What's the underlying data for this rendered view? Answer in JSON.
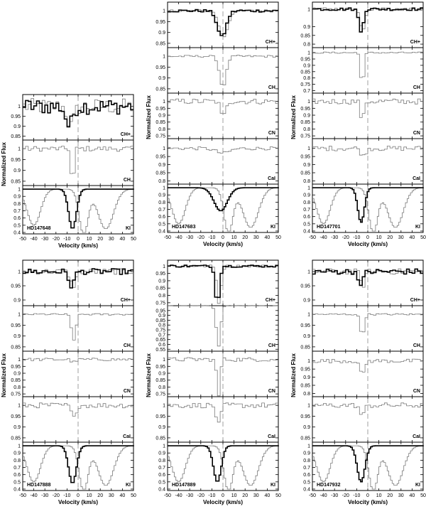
{
  "figure": {
    "xlabel": "Velocity (km/s)",
    "ylabel": "Normalized Flux",
    "xlim": [
      -50,
      50
    ],
    "xticks": [
      -50,
      -40,
      -30,
      -20,
      -10,
      0,
      10,
      20,
      30,
      40,
      50
    ]
  },
  "chart_data": [
    {
      "type": "line",
      "star": "HD147648",
      "panels": [
        {
          "species": "CH+",
          "yticks": [
            "1",
            "0.95",
            "0.9",
            "0.85"
          ],
          "ylim": [
            0.83,
            1.06
          ],
          "dip_center": -8,
          "dip_depth": 0.1,
          "dip_width": 3,
          "noise": 0.04,
          "second_series": true
        },
        {
          "species": "CH",
          "yticks": [
            "1",
            "0.95",
            "0.9",
            "0.85"
          ],
          "ylim": [
            0.83,
            1.04
          ],
          "dip_center": -5,
          "dip_depth": 0.2,
          "dip_width": 1.2,
          "noise": 0.012
        },
        {
          "species": "KI",
          "yticks": [
            "1",
            "0.9",
            "0.8",
            "0.7",
            "0.6",
            "0.5",
            "0.4"
          ],
          "ylim": [
            0.38,
            1.05
          ],
          "dip_center": -5,
          "dip_depth": 0.55,
          "dip_width": 3.5,
          "noise": 0.0,
          "kI": true
        }
      ]
    },
    {
      "type": "line",
      "star": "HD147683",
      "panels": [
        {
          "species": "CH+",
          "yticks": [
            "1",
            "0.95",
            "0.9",
            "0.85"
          ],
          "ylim": [
            0.83,
            1.04
          ],
          "dip_center": -1,
          "dip_depth": 0.12,
          "dip_width": 4,
          "noise": 0.006,
          "second_series": true
        },
        {
          "species": "CH",
          "yticks": [
            "1",
            "0.95",
            "0.9",
            "0.85"
          ],
          "ylim": [
            0.83,
            1.04
          ],
          "dip_center": 0,
          "dip_depth": 0.14,
          "dip_width": 3,
          "noise": 0.005
        },
        {
          "species": "CN",
          "yticks": [
            "1",
            "0.95",
            "0.9",
            "0.85",
            "0.8",
            "0.75"
          ],
          "ylim": [
            0.73,
            1.06
          ],
          "dip_center": 0,
          "dip_depth": 0.12,
          "dip_width": 2,
          "noise": 0.02
        },
        {
          "species": "CaI",
          "yticks": [
            "1",
            "0.95",
            "0.9",
            "0.85",
            "0.8"
          ],
          "ylim": [
            0.78,
            1.06
          ],
          "dip_center": 0,
          "dip_depth": 0.03,
          "dip_width": 6,
          "noise": 0.01
        },
        {
          "species": "KI",
          "yticks": [
            "1",
            "0.9",
            "0.8",
            "0.7",
            "0.6",
            "0.5",
            "0.4"
          ],
          "ylim": [
            0.38,
            1.05
          ],
          "dip_center": -2,
          "dip_depth": 0.32,
          "dip_width": 6,
          "noise": 0.0,
          "kI": true
        }
      ]
    },
    {
      "type": "line",
      "star": "HD147701",
      "panels": [
        {
          "species": "CH+",
          "yticks": [
            "1",
            "0.9",
            "0.85",
            "0.8"
          ],
          "ylim": [
            0.78,
            1.04
          ],
          "dip_center": -6,
          "dip_depth": 0.13,
          "dip_width": 2,
          "noise": 0.008,
          "second_series": true
        },
        {
          "species": "CH",
          "yticks": [
            "1",
            "0.95",
            "0.9",
            "0.85",
            "0.8",
            "0.75",
            "0.7"
          ],
          "ylim": [
            0.68,
            1.04
          ],
          "dip_center": -5,
          "dip_depth": 0.27,
          "dip_width": 1.5,
          "noise": 0.006
        },
        {
          "species": "CN",
          "yticks": [
            "1",
            "0.95",
            "0.9",
            "0.85",
            "0.8",
            "0.75"
          ],
          "ylim": [
            0.73,
            1.06
          ],
          "dip_center": -5,
          "dip_depth": 0.15,
          "dip_width": 1.5,
          "noise": 0.02
        },
        {
          "species": "CaI",
          "yticks": [
            "1",
            "0.95",
            "0.9",
            "0.85",
            "0.8"
          ],
          "ylim": [
            0.78,
            1.06
          ],
          "dip_center": -4,
          "dip_depth": 0.05,
          "dip_width": 2,
          "noise": 0.015
        },
        {
          "species": "KI",
          "yticks": [
            "1",
            "0.9",
            "0.8",
            "0.7",
            "0.6",
            "0.5",
            "0.4"
          ],
          "ylim": [
            0.38,
            1.05
          ],
          "dip_center": -6,
          "dip_depth": 0.48,
          "dip_width": 3,
          "noise": 0.0,
          "kI": true
        }
      ]
    },
    {
      "type": "line",
      "star": "HD147888",
      "panels": [
        {
          "species": "CH+",
          "yticks": [
            "1",
            "0.95",
            "0.9"
          ],
          "ylim": [
            0.88,
            1.04
          ],
          "dip_center": -6,
          "dip_depth": 0.05,
          "dip_width": 2.5,
          "noise": 0.01,
          "second_series": true
        },
        {
          "species": "CH",
          "yticks": [
            "1",
            "0.95",
            "0.9",
            "0.85"
          ],
          "ylim": [
            0.83,
            1.04
          ],
          "dip_center": -4,
          "dip_depth": 0.12,
          "dip_width": 2,
          "noise": 0.004
        },
        {
          "species": "CN",
          "yticks": [
            "1",
            "0.95",
            "0.9",
            "0.85",
            "0.8",
            "0.75"
          ],
          "ylim": [
            0.73,
            1.06
          ],
          "dip_center": -4,
          "dip_depth": 0.02,
          "dip_width": 2,
          "noise": 0.01
        },
        {
          "species": "CaI",
          "yticks": [
            "1",
            "0.95",
            "0.9",
            "0.85"
          ],
          "ylim": [
            0.83,
            1.04
          ],
          "dip_center": -4,
          "dip_depth": 0.06,
          "dip_width": 2,
          "noise": 0.012
        },
        {
          "species": "KI",
          "yticks": [
            "1",
            "0.9",
            "0.8",
            "0.7",
            "0.6",
            "0.5",
            "0.4"
          ],
          "ylim": [
            0.38,
            1.05
          ],
          "dip_center": -5,
          "dip_depth": 0.52,
          "dip_width": 3.5,
          "noise": 0.0,
          "kI": true
        }
      ]
    },
    {
      "type": "line",
      "star": "HD147889",
      "panels": [
        {
          "species": "CH+",
          "yticks": [
            "1",
            "0.95",
            "0.9",
            "0.85",
            "0.8",
            "0.75"
          ],
          "ylim": [
            0.73,
            1.04
          ],
          "dip_center": -5,
          "dip_depth": 0.25,
          "dip_width": 2,
          "noise": 0.008,
          "second_series": true
        },
        {
          "species": "CH",
          "yticks": [
            "0.95",
            "0.9",
            "0.85",
            "0.8",
            "0.75",
            "0.7",
            "0.65",
            "0.6",
            "0.55"
          ],
          "ylim": [
            0.53,
            1.0
          ],
          "dip_center": -4,
          "dip_depth": 0.42,
          "dip_width": 2,
          "noise": 0.004
        },
        {
          "species": "CN",
          "yticks": [
            "1",
            "0.95",
            "0.9",
            "0.85",
            "0.8",
            "0.75"
          ],
          "ylim": [
            0.73,
            1.06
          ],
          "dip_center": -4,
          "dip_depth": 0.27,
          "dip_width": 1.5,
          "noise": 0.015
        },
        {
          "species": "CaI",
          "yticks": [
            "1",
            "0.95",
            "0.9",
            "0.85"
          ],
          "ylim": [
            0.83,
            1.04
          ],
          "dip_center": -4,
          "dip_depth": 0.09,
          "dip_width": 2,
          "noise": 0.012
        },
        {
          "species": "KI",
          "yticks": [
            "1",
            "0.9",
            "0.8",
            "0.7",
            "0.6",
            "0.5",
            "0.4"
          ],
          "ylim": [
            0.38,
            1.05
          ],
          "dip_center": -5,
          "dip_depth": 0.5,
          "dip_width": 3.5,
          "noise": 0.0,
          "kI": true
        }
      ]
    },
    {
      "type": "line",
      "star": "HD147932",
      "panels": [
        {
          "species": "CH+",
          "yticks": [
            "1",
            "0.95",
            "0.9"
          ],
          "ylim": [
            0.88,
            1.04
          ],
          "dip_center": -6,
          "dip_depth": 0.05,
          "dip_width": 2,
          "noise": 0.01,
          "second_series": true
        },
        {
          "species": "CH",
          "yticks": [
            "1",
            "0.95",
            "0.9",
            "0.85"
          ],
          "ylim": [
            0.83,
            1.04
          ],
          "dip_center": -5,
          "dip_depth": 0.1,
          "dip_width": 1.8,
          "noise": 0.004
        },
        {
          "species": "CN",
          "yticks": [
            "1",
            "0.95",
            "0.9",
            "0.85",
            "0.8"
          ],
          "ylim": [
            0.78,
            1.06
          ],
          "dip_center": -5,
          "dip_depth": 0.09,
          "dip_width": 2,
          "noise": 0.012
        },
        {
          "species": "CaI",
          "yticks": [
            "1",
            "0.95",
            "0.9",
            "0.85"
          ],
          "ylim": [
            0.83,
            1.04
          ],
          "dip_center": -5,
          "dip_depth": 0.05,
          "dip_width": 2,
          "noise": 0.012
        },
        {
          "species": "KI",
          "yticks": [
            "1",
            "0.9",
            "0.8",
            "0.7",
            "0.6",
            "0.5",
            "0.4"
          ],
          "ylim": [
            0.38,
            1.05
          ],
          "dip_center": -6,
          "dip_depth": 0.5,
          "dip_width": 3.5,
          "noise": 0.0,
          "kI": true
        }
      ]
    }
  ]
}
